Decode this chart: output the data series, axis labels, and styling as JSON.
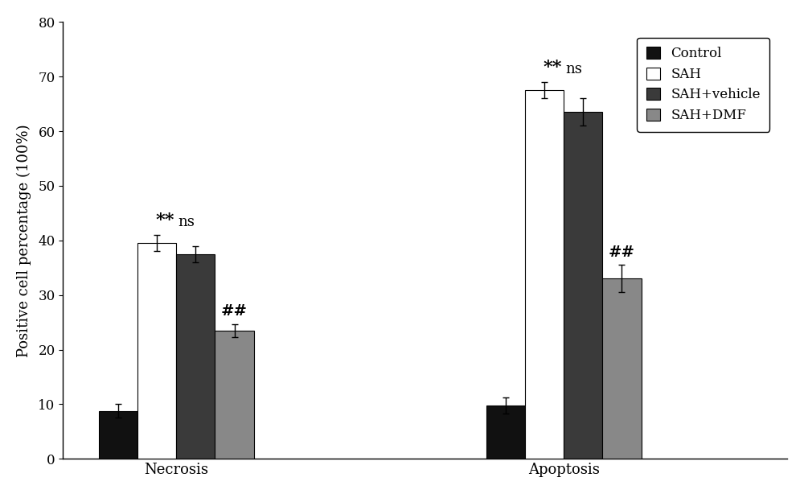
{
  "groups": [
    "Necrosis",
    "Apoptosis"
  ],
  "series": [
    "Control",
    "SAH",
    "SAH+vehicle",
    "SAH+DMF"
  ],
  "values": [
    [
      8.8,
      39.5,
      37.5,
      23.5
    ],
    [
      9.8,
      67.5,
      63.5,
      33.0
    ]
  ],
  "errors": [
    [
      1.2,
      1.5,
      1.5,
      1.2
    ],
    [
      1.5,
      1.5,
      2.5,
      2.5
    ]
  ],
  "bar_colors": [
    "#111111",
    "#ffffff",
    "#3a3a3a",
    "#888888"
  ],
  "bar_edgecolors": [
    "#000000",
    "#000000",
    "#000000",
    "#000000"
  ],
  "ylabel": "Positive cell percentage (100%)",
  "ylim": [
    0,
    80
  ],
  "yticks": [
    0,
    10,
    20,
    30,
    40,
    50,
    60,
    70,
    80
  ],
  "legend_labels": [
    "Control",
    "SAH",
    "SAH+vehicle",
    "SAH+DMF"
  ],
  "bar_width": 0.13,
  "background_color": "#ffffff",
  "axis_fontsize": 13,
  "tick_fontsize": 12,
  "legend_fontsize": 12,
  "annot_fontsize_star": 16,
  "annot_fontsize_ns": 13,
  "annot_fontsize_hash": 14,
  "group_centers": [
    0.9,
    2.2
  ]
}
